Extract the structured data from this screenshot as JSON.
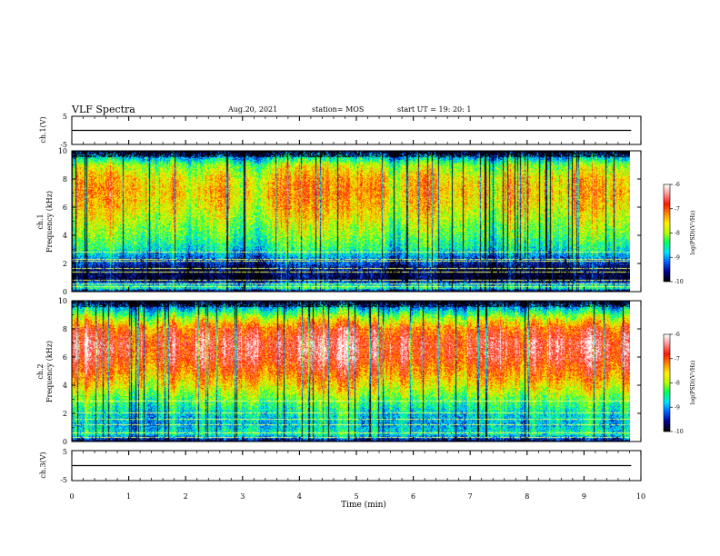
{
  "header": {
    "title": "VLF Spectra",
    "date": "Aug.20, 2021",
    "station": "station= MOS",
    "start": "start  UT  =   19: 20: 1"
  },
  "chart_data": [
    {
      "type": "line",
      "panel": "ch1-waveform",
      "ylabel": "ch.1(V)",
      "yticks": [
        "5",
        "-5"
      ],
      "ylim": [
        -5,
        5
      ],
      "series": [
        {
          "x": [
            0,
            9.83
          ],
          "values": [
            0,
            0
          ]
        }
      ]
    },
    {
      "type": "heatmap",
      "panel": "ch1-spectrogram",
      "ylabel_channel": "ch.1",
      "ylabel": "Frequency (kHz)",
      "yticks": [
        "0",
        "2",
        "4",
        "6",
        "8",
        "10"
      ],
      "ylim": [
        0,
        10
      ],
      "xlim": [
        0,
        9.83
      ],
      "band_profile": [
        {
          "f": 10.0,
          "p": -9.8
        },
        {
          "f": 9.6,
          "p": -9.0
        },
        {
          "f": 9.0,
          "p": -8.0
        },
        {
          "f": 8.0,
          "p": -7.5
        },
        {
          "f": 7.0,
          "p": -7.4
        },
        {
          "f": 6.0,
          "p": -7.6
        },
        {
          "f": 5.0,
          "p": -7.9
        },
        {
          "f": 4.0,
          "p": -8.2
        },
        {
          "f": 3.0,
          "p": -8.6
        },
        {
          "f": 2.2,
          "p": -9.3
        },
        {
          "f": 1.5,
          "p": -9.8
        },
        {
          "f": 0.8,
          "p": -9.9
        },
        {
          "f": 0.5,
          "p": -8.9
        },
        {
          "f": 0.2,
          "p": -8.5
        },
        {
          "f": 0.0,
          "p": -9.9
        }
      ],
      "interference_lines_khz": [
        0.3,
        0.55,
        0.8,
        1.35,
        1.6,
        2.15,
        2.3,
        2.8
      ]
    },
    {
      "type": "heatmap",
      "panel": "ch2-spectrogram",
      "ylabel_channel": "ch.2",
      "ylabel": "Frequency (kHz)",
      "yticks": [
        "0",
        "2",
        "4",
        "6",
        "8",
        "10"
      ],
      "ylim": [
        0,
        10
      ],
      "xlim": [
        0,
        9.83
      ],
      "band_profile": [
        {
          "f": 10.0,
          "p": -9.8
        },
        {
          "f": 9.5,
          "p": -8.9
        },
        {
          "f": 8.8,
          "p": -7.9
        },
        {
          "f": 8.0,
          "p": -7.0
        },
        {
          "f": 7.0,
          "p": -6.6
        },
        {
          "f": 6.0,
          "p": -6.7
        },
        {
          "f": 5.0,
          "p": -7.1
        },
        {
          "f": 4.0,
          "p": -7.6
        },
        {
          "f": 3.0,
          "p": -8.2
        },
        {
          "f": 2.0,
          "p": -8.7
        },
        {
          "f": 1.2,
          "p": -8.9
        },
        {
          "f": 0.5,
          "p": -8.6
        },
        {
          "f": 0.0,
          "p": -9.8
        }
      ],
      "interference_lines_khz": [
        0.25,
        0.6,
        1.2,
        1.55,
        2.0,
        2.85
      ]
    },
    {
      "type": "line",
      "panel": "ch3-waveform",
      "ylabel": "ch.3(V)",
      "yticks": [
        "5",
        "-5"
      ],
      "ylim": [
        -5,
        5
      ],
      "series": [
        {
          "x": [
            0,
            9.83
          ],
          "values": [
            0,
            0
          ]
        }
      ]
    }
  ],
  "xaxis": {
    "label": "Time  (min)",
    "ticks": [
      "0",
      "1",
      "2",
      "3",
      "4",
      "5",
      "6",
      "7",
      "8",
      "9",
      "10"
    ],
    "range": [
      0,
      10
    ]
  },
  "colorbars": [
    {
      "label": "log(PSD)(V²/Hz)",
      "ticks": [
        "-6",
        "-7",
        "-8",
        "-9",
        "-10"
      ],
      "range": [
        -10,
        -6
      ]
    },
    {
      "label": "log(PSD)(V²/Hz)",
      "ticks": [
        "-6",
        "-7",
        "-8",
        "-9",
        "-10"
      ],
      "range": [
        -10,
        -6
      ]
    }
  ],
  "colors": {
    "colormap": [
      "#000000",
      "#00008c",
      "#0060ff",
      "#00e8ff",
      "#00ff60",
      "#b4ff00",
      "#fff000",
      "#ff8800",
      "#ff1400",
      "#ff9090",
      "#ffffff"
    ],
    "frame": "#000000",
    "interference": "#e8ff60"
  }
}
